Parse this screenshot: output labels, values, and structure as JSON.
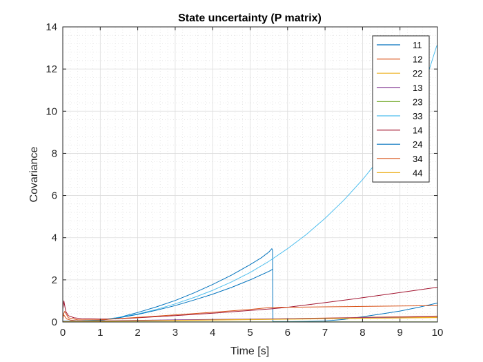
{
  "chart_data": {
    "type": "line",
    "title": "State uncertainty (P matrix)",
    "xlabel": "Time [s]",
    "ylabel": "Covariance",
    "xlim": [
      0,
      10
    ],
    "ylim": [
      0,
      14
    ],
    "xticks": [
      "0",
      "1",
      "2",
      "3",
      "4",
      "5",
      "6",
      "7",
      "8",
      "9",
      "10"
    ],
    "yticks": [
      "0",
      "2",
      "4",
      "6",
      "8",
      "10",
      "12",
      "14"
    ],
    "grid": "major and minor, dotted",
    "legend_position": "top-right",
    "series": [
      {
        "name": "11",
        "color": "#0072BD",
        "x": [
          0,
          0.02,
          0.1,
          0.3,
          0.5,
          1,
          1.5,
          2,
          2.5,
          3,
          3.5,
          4,
          4.5,
          5,
          5.3,
          5.5,
          5.58,
          5.6,
          5.61,
          6,
          6.5,
          7,
          7.5,
          8,
          8.5,
          9,
          9.5,
          10
        ],
        "y": [
          0.03,
          0.03,
          0.03,
          0.04,
          0.05,
          0.08,
          0.22,
          0.45,
          0.72,
          1.02,
          1.38,
          1.78,
          2.22,
          2.72,
          3.05,
          3.32,
          3.48,
          3.4,
          0.02,
          0.02,
          0.03,
          0.05,
          0.12,
          0.25,
          0.38,
          0.52,
          0.7,
          0.9
        ]
      },
      {
        "name": "12",
        "color": "#D95319",
        "x": [
          0,
          0.02,
          0.05,
          0.1,
          0.2,
          0.4,
          0.7,
          1,
          2,
          3,
          4,
          5,
          5.6,
          6,
          7,
          8,
          9,
          10
        ],
        "y": [
          0.12,
          0.35,
          0.28,
          0.15,
          0.09,
          0.06,
          0.05,
          0.05,
          0.07,
          0.09,
          0.11,
          0.13,
          0.14,
          0.16,
          0.19,
          0.22,
          0.25,
          0.28
        ]
      },
      {
        "name": "22",
        "color": "#EDB120",
        "x": [
          0,
          1,
          2,
          3,
          4,
          5,
          6,
          7,
          8,
          9,
          10
        ],
        "y": [
          0.02,
          0.03,
          0.05,
          0.07,
          0.09,
          0.11,
          0.13,
          0.15,
          0.17,
          0.19,
          0.21
        ]
      },
      {
        "name": "13",
        "color": "#7E2F8E",
        "x": [
          0,
          1,
          2,
          3,
          4,
          5,
          6,
          7,
          8,
          9,
          10
        ],
        "y": [
          0.05,
          0.06,
          0.08,
          0.1,
          0.12,
          0.14,
          0.16,
          0.18,
          0.2,
          0.22,
          0.24
        ]
      },
      {
        "name": "23",
        "color": "#77AC30",
        "x": [
          0,
          10
        ],
        "y": [
          0.01,
          0.01
        ]
      },
      {
        "name": "33",
        "color": "#4DBEEE",
        "x": [
          0,
          0.5,
          1,
          1.5,
          2,
          2.5,
          3,
          3.5,
          4,
          4.5,
          5,
          5.5,
          6,
          6.5,
          7,
          7.5,
          8,
          8.5,
          9,
          9.5,
          9.98,
          10
        ],
        "y": [
          0.04,
          0.05,
          0.1,
          0.22,
          0.38,
          0.6,
          0.86,
          1.16,
          1.5,
          1.9,
          2.35,
          2.88,
          3.48,
          4.15,
          4.92,
          5.78,
          6.75,
          7.85,
          9.05,
          10.4,
          13.1,
          13.1
        ]
      },
      {
        "name": "14",
        "color": "#A2142F",
        "x": [
          0,
          0.03,
          0.08,
          0.15,
          0.3,
          0.5,
          1,
          1.5,
          2,
          3,
          4,
          5,
          5.6,
          6,
          7,
          8,
          9,
          10
        ],
        "y": [
          0.6,
          1.0,
          0.5,
          0.3,
          0.2,
          0.16,
          0.14,
          0.15,
          0.2,
          0.3,
          0.42,
          0.55,
          0.63,
          0.7,
          0.92,
          1.15,
          1.4,
          1.65
        ]
      },
      {
        "name": "24",
        "color": "#0072BD",
        "x": [
          0,
          0.5,
          1,
          1.5,
          2,
          2.5,
          3,
          3.5,
          4,
          4.5,
          5,
          5.5,
          5.6
        ],
        "y": [
          0.02,
          0.04,
          0.08,
          0.2,
          0.36,
          0.56,
          0.78,
          1.04,
          1.32,
          1.64,
          2.0,
          2.4,
          2.5
        ]
      },
      {
        "name": "34",
        "color": "#D95319",
        "x": [
          0,
          0.05,
          0.15,
          0.4,
          1,
          2,
          3,
          4,
          5,
          5.6,
          6,
          7,
          8,
          9,
          10
        ],
        "y": [
          0.3,
          0.5,
          0.2,
          0.1,
          0.1,
          0.22,
          0.34,
          0.46,
          0.6,
          0.7,
          0.7,
          0.72,
          0.74,
          0.76,
          0.78
        ]
      },
      {
        "name": "44",
        "color": "#EDB120",
        "x": [
          0,
          1,
          2,
          3,
          4,
          5,
          6,
          7,
          8,
          9,
          10
        ],
        "y": [
          0.02,
          0.04,
          0.06,
          0.08,
          0.1,
          0.12,
          0.14,
          0.16,
          0.18,
          0.2,
          0.22
        ]
      }
    ]
  }
}
